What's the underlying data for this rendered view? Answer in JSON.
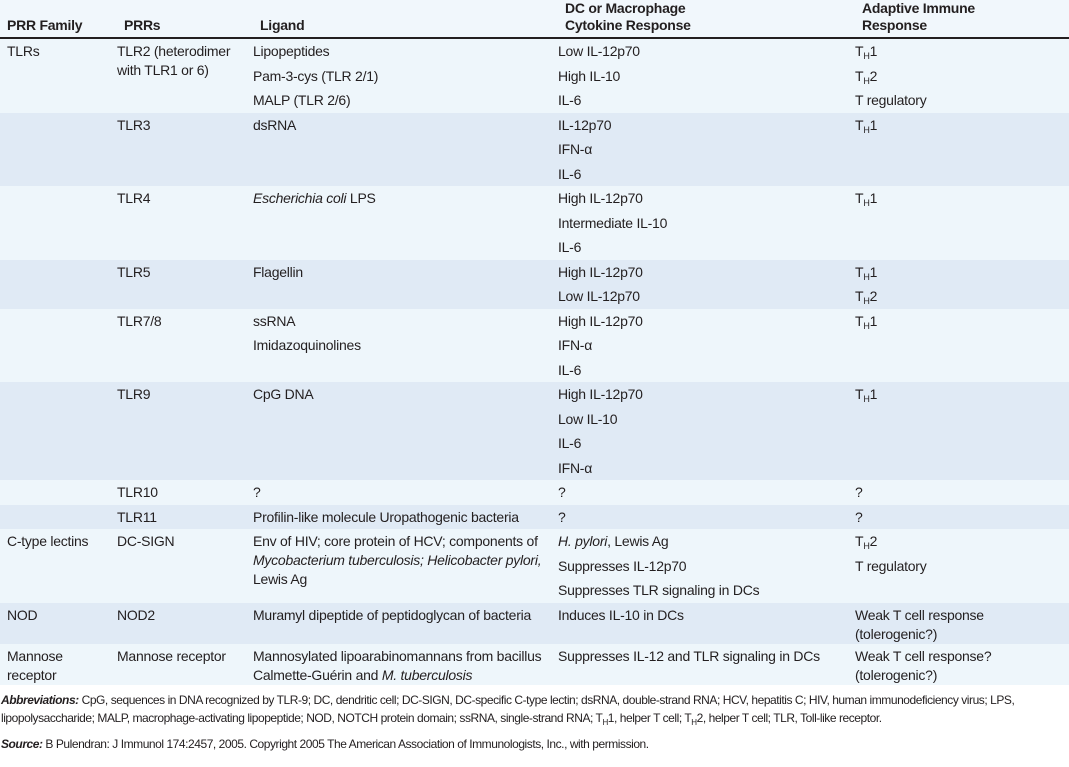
{
  "header": {
    "columns": [
      [
        "PRR Family"
      ],
      [
        "PRRs"
      ],
      [
        "Ligand"
      ],
      [
        "DC or Macrophage",
        "Cytokine Response"
      ],
      [
        "Adaptive Immune",
        "Response"
      ]
    ]
  },
  "rows": [
    {
      "family": "TLRs",
      "prr": "TLR2 (heterodimer with TLR1 or 6)",
      "ligand": [
        "Lipopeptides",
        "Pam-3-cys (TLR 2/1)",
        "MALP (TLR 2/6)"
      ],
      "cytokine": [
        "Low IL-12p70",
        "High IL-10",
        "IL-6"
      ],
      "adaptive": [
        [
          {
            "t": "T"
          },
          {
            "t": "H",
            "s": "sub"
          },
          {
            "t": "1"
          }
        ],
        [
          {
            "t": "T"
          },
          {
            "t": "H",
            "s": "sub"
          },
          {
            "t": "2"
          }
        ],
        "T regulatory"
      ]
    },
    {
      "family": "",
      "prr": "TLR3",
      "ligand": [
        "dsRNA"
      ],
      "cytokine": [
        "IL-12p70",
        "IFN-α",
        "IL-6"
      ],
      "adaptive": [
        [
          {
            "t": "T"
          },
          {
            "t": "H",
            "s": "sub"
          },
          {
            "t": "1"
          }
        ]
      ]
    },
    {
      "family": "",
      "prr": "TLR4",
      "ligand": [
        [
          {
            "t": "Escherichia coli",
            "s": "i"
          },
          {
            "t": " LPS"
          }
        ]
      ],
      "cytokine": [
        "High IL-12p70",
        "Intermediate IL-10",
        "IL-6"
      ],
      "adaptive": [
        [
          {
            "t": "T"
          },
          {
            "t": "H",
            "s": "sub"
          },
          {
            "t": "1"
          }
        ]
      ]
    },
    {
      "family": "",
      "prr": "TLR5",
      "ligand": [
        "Flagellin"
      ],
      "cytokine": [
        "High IL-12p70",
        "Low IL-12p70"
      ],
      "adaptive": [
        [
          {
            "t": "T"
          },
          {
            "t": "H",
            "s": "sub"
          },
          {
            "t": "1"
          }
        ],
        [
          {
            "t": "T"
          },
          {
            "t": "H",
            "s": "sub"
          },
          {
            "t": "2"
          }
        ]
      ]
    },
    {
      "family": "",
      "prr": "TLR7/8",
      "ligand": [
        "ssRNA",
        "Imidazoquinolines"
      ],
      "cytokine": [
        "High IL-12p70",
        "IFN-α",
        "IL-6"
      ],
      "adaptive": [
        [
          {
            "t": "T"
          },
          {
            "t": "H",
            "s": "sub"
          },
          {
            "t": "1"
          }
        ]
      ]
    },
    {
      "family": "",
      "prr": "TLR9",
      "ligand": [
        "CpG DNA"
      ],
      "cytokine": [
        "High IL-12p70",
        "Low IL-10",
        "IL-6",
        "IFN-α"
      ],
      "adaptive": [
        [
          {
            "t": "T"
          },
          {
            "t": "H",
            "s": "sub"
          },
          {
            "t": "1"
          }
        ]
      ]
    },
    {
      "family": "",
      "prr": "TLR10",
      "ligand": [
        "?"
      ],
      "cytokine": [
        "?"
      ],
      "adaptive": [
        "?"
      ]
    },
    {
      "family": "",
      "prr": "TLR11",
      "ligand": [
        "Profilin-like molecule Uropathogenic bacteria"
      ],
      "cytokine": [
        "?"
      ],
      "adaptive": [
        "?"
      ]
    },
    {
      "family": "C-type lectins",
      "prr": "DC-SIGN",
      "ligand_wrap": [
        {
          "t": "Env of HIV; core protein of HCV; components of "
        },
        {
          "t": "Mycobacterium tuberculosis; Helicobacter pylori,",
          "s": "i"
        },
        {
          "t": " Lewis Ag"
        }
      ],
      "cytokine": [
        [
          {
            "t": "H. pylori",
            "s": "i"
          },
          {
            "t": ", Lewis Ag"
          }
        ],
        "Suppresses IL-12p70",
        "Suppresses TLR signaling in DCs"
      ],
      "adaptive": [
        [
          {
            "t": "T"
          },
          {
            "t": "H",
            "s": "sub"
          },
          {
            "t": "2"
          }
        ],
        "T regulatory"
      ]
    },
    {
      "family": "NOD",
      "prr": "NOD2",
      "ligand": [
        "Muramyl dipeptide of peptidoglycan of bacteria"
      ],
      "cytokine": [
        "Induces IL-10 in DCs"
      ],
      "adaptive_wrap": [
        {
          "t": "Weak T cell response (tolerogenic?)"
        }
      ]
    },
    {
      "family": "Mannose receptor",
      "prr": "Mannose receptor",
      "ligand_wrap": [
        {
          "t": "Mannosylated lipoarabinomannans from bacillus Calmette-Guérin and "
        },
        {
          "t": "M. tuberculosis",
          "s": "i"
        }
      ],
      "cytokine": [
        "Suppresses IL-12 and TLR signaling in DCs"
      ],
      "adaptive_wrap": [
        {
          "t": "Weak T cell response? (tolerogenic?)"
        }
      ]
    }
  ],
  "footnotes": {
    "abbreviations_label": "Abbreviations:",
    "abbreviations": [
      {
        "t": " CpG, sequences in DNA recognized by TLR-9; DC, dendritic cell; DC-SIGN, DC-specific C-type lectin; dsRNA, double-strand RNA; HCV, hepatitis C; HIV, human immunodeficiency virus; LPS, lipopolysaccharide; MALP, macrophage-activating lipopeptide; NOD, NOTCH protein domain; ssRNA, single-strand RNA; T"
      },
      {
        "t": "H",
        "s": "sub"
      },
      {
        "t": "1, helper T cell; T"
      },
      {
        "t": "H",
        "s": "sub"
      },
      {
        "t": "2, helper T cell; TLR, Toll-like receptor."
      }
    ],
    "source_label": "Source:",
    "source": " B Pulendran: J Immunol 174:2457, 2005. Copyright 2005 The American Association of Immunologists, Inc., with permission."
  }
}
